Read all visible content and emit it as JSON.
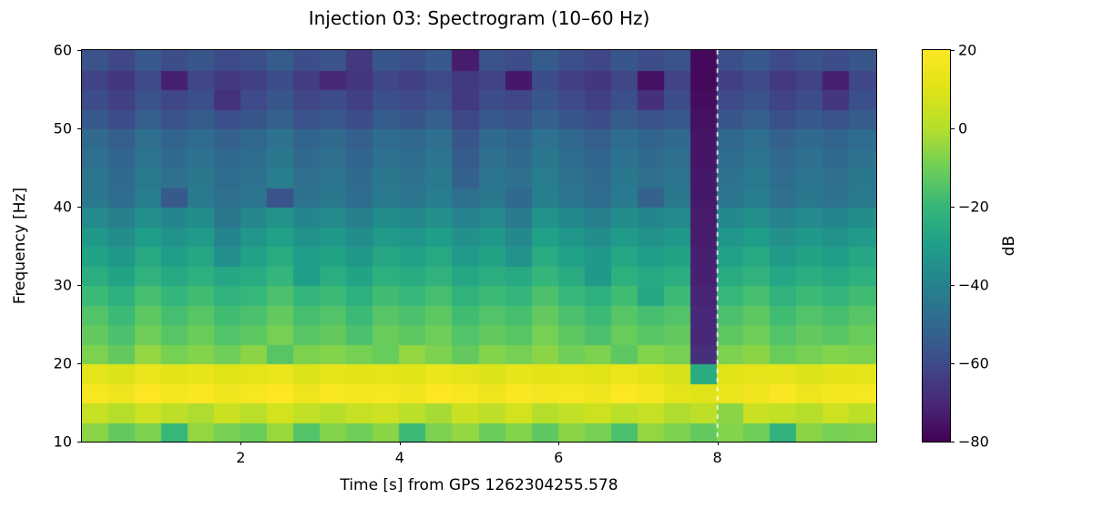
{
  "figure": {
    "background": "#ffffff"
  },
  "chart_data": {
    "type": "heatmap",
    "title": "Injection 03: Spectrogram (10–60 Hz)",
    "xlabel": "Time [s] from GPS 1262304255.578",
    "ylabel": "Frequency [Hz]",
    "colorbar_label": "dB",
    "x_range": [
      0,
      10
    ],
    "y_range": [
      10,
      60
    ],
    "clim": [
      -80,
      20
    ],
    "x_ticks": [
      {
        "v": 2,
        "label": "2"
      },
      {
        "v": 4,
        "label": "4"
      },
      {
        "v": 6,
        "label": "6"
      },
      {
        "v": 8,
        "label": "8"
      }
    ],
    "y_ticks": [
      {
        "v": 10,
        "label": "10"
      },
      {
        "v": 20,
        "label": "20"
      },
      {
        "v": 30,
        "label": "30"
      },
      {
        "v": 40,
        "label": "40"
      },
      {
        "v": 50,
        "label": "50"
      },
      {
        "v": 60,
        "label": "60"
      }
    ],
    "colorbar_ticks": [
      {
        "v": 20,
        "label": "20"
      },
      {
        "v": 0,
        "label": "0"
      },
      {
        "v": -20,
        "label": "−20"
      },
      {
        "v": -40,
        "label": "−40"
      },
      {
        "v": -60,
        "label": "−60"
      },
      {
        "v": -80,
        "label": "−80"
      }
    ],
    "vline": {
      "x": 8,
      "color": "#ffffff",
      "style": "dashed"
    },
    "colormap": {
      "name": "viridis",
      "stops": [
        [
          0.0,
          "#440154"
        ],
        [
          0.1,
          "#482878"
        ],
        [
          0.2,
          "#3e4a89"
        ],
        [
          0.3,
          "#31688e"
        ],
        [
          0.4,
          "#26828e"
        ],
        [
          0.5,
          "#1f9e89"
        ],
        [
          0.6,
          "#35b779"
        ],
        [
          0.7,
          "#6ece58"
        ],
        [
          0.8,
          "#b5de2b"
        ],
        [
          0.9,
          "#dfe318"
        ],
        [
          1.0,
          "#fde725"
        ]
      ]
    },
    "time_bin_width_s": 0.333,
    "freq_bin_width_hz": 2.5,
    "values_order": "rows from 10 Hz (bottom) to 60 Hz (top), 30 time bins each",
    "values": [
      [
        -6,
        -12,
        -8,
        -20,
        -5,
        -9,
        -11,
        -4,
        -15,
        -7,
        -10,
        -6,
        -19,
        -8,
        -5,
        -11,
        -7,
        -13,
        -6,
        -9,
        -16,
        -5,
        -8,
        -12,
        -7,
        -10,
        -22,
        -6,
        -9,
        -8
      ],
      [
        4,
        0,
        6,
        2,
        -1,
        5,
        1,
        7,
        3,
        0,
        4,
        6,
        1,
        -2,
        5,
        2,
        7,
        0,
        3,
        6,
        1,
        4,
        -1,
        2,
        -6,
        5,
        3,
        0,
        6,
        2
      ],
      [
        18,
        15,
        20,
        17,
        19,
        16,
        18,
        20,
        15,
        19,
        17,
        18,
        16,
        20,
        18,
        15,
        19,
        17,
        18,
        16,
        20,
        17,
        12,
        10,
        14,
        16,
        19,
        15,
        17,
        18
      ],
      [
        12,
        9,
        14,
        11,
        13,
        10,
        12,
        14,
        9,
        13,
        11,
        12,
        10,
        14,
        12,
        9,
        13,
        11,
        12,
        10,
        14,
        11,
        8,
        -25,
        10,
        12,
        13,
        9,
        11,
        12
      ],
      [
        -8,
        -12,
        -5,
        -9,
        -7,
        -10,
        -6,
        -14,
        -8,
        -7,
        -9,
        -11,
        -5,
        -8,
        -12,
        -7,
        -9,
        -6,
        -10,
        -8,
        -13,
        -7,
        -9,
        -68,
        -8,
        -6,
        -11,
        -9,
        -7,
        -8
      ],
      [
        -12,
        -16,
        -10,
        -14,
        -11,
        -15,
        -13,
        -9,
        -14,
        -12,
        -16,
        -11,
        -13,
        -10,
        -15,
        -12,
        -14,
        -9,
        -13,
        -16,
        -11,
        -14,
        -12,
        -70,
        -13,
        -10,
        -15,
        -12,
        -14,
        -11
      ],
      [
        -15,
        -19,
        -13,
        -17,
        -14,
        -18,
        -16,
        -12,
        -17,
        -15,
        -19,
        -14,
        -16,
        -13,
        -18,
        -15,
        -17,
        -12,
        -16,
        -19,
        -14,
        -17,
        -15,
        -70,
        -16,
        -13,
        -18,
        -15,
        -17,
        -14
      ],
      [
        -19,
        -23,
        -17,
        -21,
        -18,
        -22,
        -20,
        -16,
        -21,
        -19,
        -23,
        -18,
        -20,
        -17,
        -22,
        -19,
        -21,
        -16,
        -20,
        -23,
        -18,
        -27,
        -19,
        -71,
        -20,
        -17,
        -22,
        -19,
        -21,
        -18
      ],
      [
        -24,
        -28,
        -22,
        -26,
        -23,
        -27,
        -25,
        -21,
        -30,
        -24,
        -28,
        -23,
        -25,
        -22,
        -27,
        -24,
        -26,
        -21,
        -25,
        -32,
        -23,
        -26,
        -24,
        -72,
        -25,
        -22,
        -27,
        -24,
        -26,
        -23
      ],
      [
        -28,
        -32,
        -26,
        -30,
        -27,
        -35,
        -29,
        -25,
        -30,
        -28,
        -32,
        -27,
        -29,
        -26,
        -31,
        -28,
        -34,
        -25,
        -29,
        -32,
        -27,
        -30,
        -28,
        -72,
        -29,
        -26,
        -31,
        -28,
        -30,
        -27
      ],
      [
        -32,
        -36,
        -30,
        -34,
        -31,
        -39,
        -33,
        -29,
        -34,
        -32,
        -36,
        -31,
        -33,
        -30,
        -35,
        -32,
        -38,
        -29,
        -33,
        -36,
        -31,
        -34,
        -32,
        -73,
        -33,
        -30,
        -35,
        -32,
        -34,
        -31
      ],
      [
        -37,
        -41,
        -35,
        -39,
        -36,
        -44,
        -38,
        -34,
        -39,
        -37,
        -41,
        -36,
        -38,
        -35,
        -40,
        -37,
        -43,
        -34,
        -38,
        -41,
        -36,
        -39,
        -37,
        -73,
        -38,
        -35,
        -40,
        -37,
        -39,
        -36
      ],
      [
        -44,
        -48,
        -42,
        -55,
        -43,
        -47,
        -45,
        -57,
        -46,
        -44,
        -48,
        -43,
        -45,
        -42,
        -47,
        -44,
        -50,
        -41,
        -45,
        -48,
        -43,
        -52,
        -44,
        -74,
        -45,
        -42,
        -47,
        -44,
        -46,
        -43
      ],
      [
        -45,
        -49,
        -43,
        -47,
        -44,
        -48,
        -46,
        -42,
        -47,
        -45,
        -49,
        -44,
        -46,
        -43,
        -52,
        -45,
        -47,
        -42,
        -46,
        -49,
        -44,
        -47,
        -45,
        -74,
        -46,
        -43,
        -48,
        -45,
        -47,
        -44
      ],
      [
        -47,
        -51,
        -45,
        -49,
        -46,
        -50,
        -48,
        -44,
        -49,
        -47,
        -51,
        -46,
        -48,
        -45,
        -54,
        -47,
        -49,
        -44,
        -48,
        -51,
        -46,
        -49,
        -47,
        -75,
        -48,
        -45,
        -50,
        -47,
        -49,
        -46
      ],
      [
        -49,
        -53,
        -47,
        -51,
        -48,
        -52,
        -50,
        -46,
        -51,
        -49,
        -53,
        -48,
        -50,
        -47,
        -56,
        -49,
        -51,
        -46,
        -50,
        -53,
        -48,
        -51,
        -49,
        -75,
        -50,
        -47,
        -52,
        -49,
        -51,
        -48
      ],
      [
        -55,
        -59,
        -53,
        -57,
        -54,
        -58,
        -56,
        -52,
        -57,
        -55,
        -59,
        -54,
        -56,
        -53,
        -61,
        -55,
        -57,
        -52,
        -56,
        -59,
        -54,
        -57,
        -55,
        -76,
        -56,
        -53,
        -58,
        -55,
        -57,
        -54
      ],
      [
        -59,
        -63,
        -57,
        -61,
        -58,
        -67,
        -60,
        -56,
        -61,
        -59,
        -63,
        -58,
        -60,
        -57,
        -65,
        -59,
        -61,
        -56,
        -60,
        -63,
        -58,
        -68,
        -59,
        -77,
        -60,
        -57,
        -62,
        -59,
        -66,
        -58
      ],
      [
        -62,
        -66,
        -60,
        -72,
        -61,
        -65,
        -63,
        -59,
        -64,
        -70,
        -66,
        -61,
        -63,
        -60,
        -65,
        -62,
        -74,
        -59,
        -63,
        -66,
        -61,
        -76,
        -62,
        -78,
        -63,
        -60,
        -65,
        -62,
        -72,
        -61
      ],
      [
        -57,
        -61,
        -55,
        -59,
        -56,
        -60,
        -58,
        -54,
        -59,
        -57,
        -65,
        -56,
        -58,
        -55,
        -73,
        -57,
        -59,
        -54,
        -58,
        -61,
        -56,
        -59,
        -57,
        -78,
        -58,
        -55,
        -60,
        -57,
        -59,
        -56
      ]
    ]
  }
}
